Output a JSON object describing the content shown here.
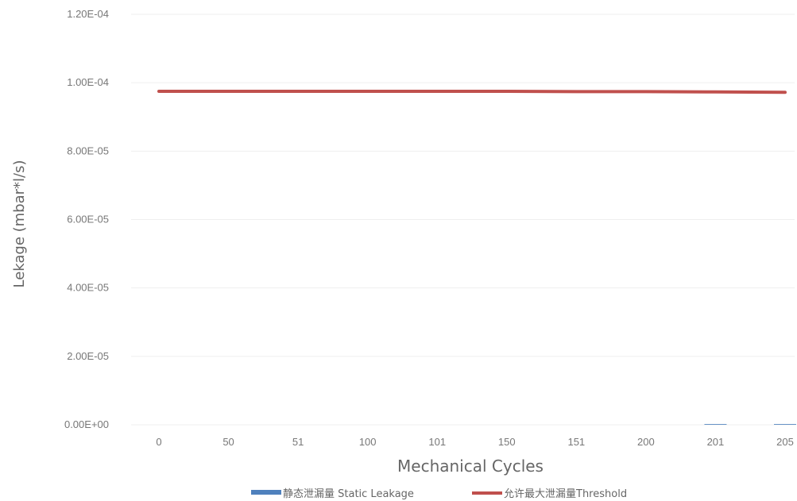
{
  "chart_data": {
    "type": "line",
    "xlabel": "Mechanical Cycles",
    "ylabel": "Lekage (mbar*l/s)",
    "categories": [
      "0",
      "50",
      "51",
      "100",
      "101",
      "150",
      "151",
      "200",
      "201",
      "205"
    ],
    "yticks": [
      "1.20E-04",
      "1.00E-04",
      "8.00E-05",
      "6.00E-05",
      "4.00E-05",
      "2.00E-05",
      "0.00E+00"
    ],
    "ylim": [
      0,
      0.00012
    ],
    "grid": true,
    "legend_position": "bottom",
    "series": [
      {
        "name": "静态泄漏量 Static Leakage",
        "render": "bar",
        "color": "#4f81bd",
        "values": [
          0,
          0,
          0,
          0,
          0,
          0,
          0,
          0,
          2e-07,
          2e-07
        ]
      },
      {
        "name": "允许最大泄漏量Threshold",
        "render": "line",
        "color": "#c0504d",
        "values": [
          9.75e-05,
          9.75e-05,
          9.75e-05,
          9.75e-05,
          9.75e-05,
          9.75e-05,
          9.74e-05,
          9.74e-05,
          9.73e-05,
          9.72e-05
        ]
      }
    ]
  }
}
